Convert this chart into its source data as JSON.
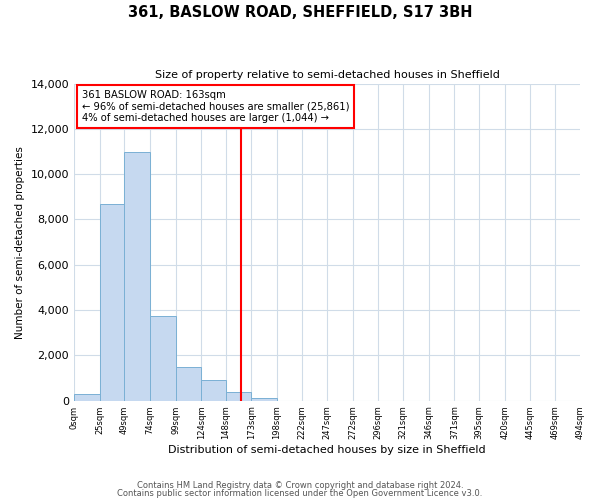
{
  "title": "361, BASLOW ROAD, SHEFFIELD, S17 3BH",
  "subtitle": "Size of property relative to semi-detached houses in Sheffield",
  "xlabel": "Distribution of semi-detached houses by size in Sheffield",
  "ylabel": "Number of semi-detached properties",
  "bin_edges": [
    0,
    25,
    49,
    74,
    99,
    124,
    148,
    173,
    198,
    222,
    247,
    272,
    296,
    321,
    346,
    371,
    395,
    420,
    445,
    469,
    494
  ],
  "bar_heights": [
    300,
    8700,
    11000,
    3750,
    1500,
    900,
    400,
    120,
    0,
    0,
    0,
    0,
    0,
    0,
    0,
    0,
    0,
    0,
    0,
    0
  ],
  "bar_color": "#c6d9f0",
  "bar_edge_color": "#7ab0d4",
  "vline_x": 163,
  "vline_color": "red",
  "annotation_title": "361 BASLOW ROAD: 163sqm",
  "annotation_line1": "← 96% of semi-detached houses are smaller (25,861)",
  "annotation_line2": "4% of semi-detached houses are larger (1,044) →",
  "annotation_box_color": "white",
  "annotation_box_edge": "red",
  "ylim": [
    0,
    14000
  ],
  "yticks": [
    0,
    2000,
    4000,
    6000,
    8000,
    10000,
    12000,
    14000
  ],
  "tick_labels": [
    "0sqm",
    "25sqm",
    "49sqm",
    "74sqm",
    "99sqm",
    "124sqm",
    "148sqm",
    "173sqm",
    "198sqm",
    "222sqm",
    "247sqm",
    "272sqm",
    "296sqm",
    "321sqm",
    "346sqm",
    "371sqm",
    "395sqm",
    "420sqm",
    "445sqm",
    "469sqm",
    "494sqm"
  ],
  "footnote1": "Contains HM Land Registry data © Crown copyright and database right 2024.",
  "footnote2": "Contains public sector information licensed under the Open Government Licence v3.0.",
  "bg_color": "#ffffff",
  "grid_color": "#d0dce8"
}
